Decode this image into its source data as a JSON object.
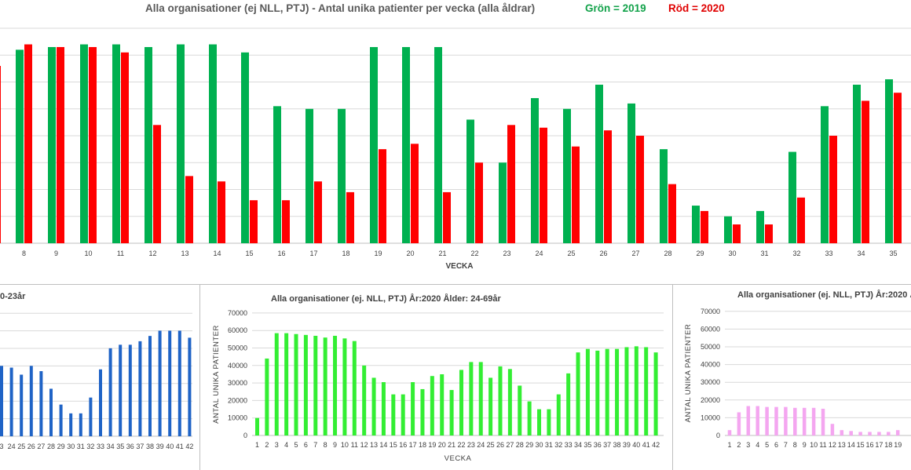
{
  "chart_data": [
    {
      "type": "bar",
      "id": "top",
      "title": "Alla organisationer (ej NLL,  PTJ)   -   Antal unika patienter per vecka (alla åldrar)",
      "legend_text": [
        {
          "text": "Grön = 2019",
          "color": "#12a24a"
        },
        {
          "text": "Röd = 2020",
          "color": "#e00000"
        }
      ],
      "xlabel": "VECKA",
      "categories": [
        "8",
        "9",
        "10",
        "11",
        "12",
        "13",
        "14",
        "15",
        "16",
        "17",
        "18",
        "19",
        "20",
        "21",
        "22",
        "23",
        "24",
        "25",
        "26",
        "27",
        "28",
        "29",
        "30",
        "31",
        "32",
        "33",
        "34",
        "35"
      ],
      "ylim": [
        0,
        80
      ],
      "grid": true,
      "series": [
        {
          "color": "#00b050",
          "values": [
            72,
            73,
            74,
            74,
            73,
            74,
            74,
            71,
            51,
            50,
            50,
            73,
            73,
            73,
            46,
            30,
            54,
            50,
            59,
            52,
            35,
            14,
            10,
            12,
            34,
            51,
            59,
            61
          ]
        },
        {
          "color": "#ff0000",
          "values": [
            74,
            73,
            73,
            71,
            44,
            25,
            23,
            16,
            16,
            23,
            19,
            35,
            37,
            19,
            30,
            44,
            43,
            36,
            42,
            40,
            22,
            12,
            7,
            7,
            17,
            40,
            53,
            56
          ]
        }
      ]
    },
    {
      "type": "bar",
      "id": "left",
      "title": "0-23år",
      "categories": [
        "3",
        "24",
        "25",
        "26",
        "27",
        "28",
        "29",
        "30",
        "31",
        "32",
        "33",
        "34",
        "35",
        "36",
        "37",
        "38",
        "39",
        "40",
        "41",
        "42"
      ],
      "ylim": [
        0,
        70
      ],
      "grid": true,
      "series": [
        {
          "color": "#1f63c6",
          "values": [
            40,
            39,
            35,
            40,
            37,
            27,
            18,
            13,
            13,
            22,
            38,
            50,
            52,
            52,
            54,
            57,
            60,
            60,
            60,
            56
          ]
        }
      ]
    },
    {
      "type": "bar",
      "id": "middle",
      "title": "Alla organisationer (ej. NLL, PTJ)  År:2020   Ålder: 24-69år",
      "xlabel": "VECKA",
      "ylabel": "ANTAL UNIKA PATIENTER",
      "categories": [
        "1",
        "2",
        "3",
        "4",
        "5",
        "6",
        "7",
        "8",
        "9",
        "10",
        "11",
        "12",
        "13",
        "14",
        "15",
        "16",
        "17",
        "18",
        "19",
        "20",
        "21",
        "22",
        "23",
        "24",
        "25",
        "26",
        "27",
        "28",
        "29",
        "30",
        "31",
        "32",
        "33",
        "34",
        "35",
        "36",
        "37",
        "38",
        "39",
        "40",
        "41",
        "42"
      ],
      "yticks": [
        "0",
        "10000",
        "20000",
        "30000",
        "40000",
        "50000",
        "60000",
        "70000"
      ],
      "ylim": [
        0,
        70000
      ],
      "grid": true,
      "series": [
        {
          "color": "#33ee33",
          "values": [
            10000,
            44000,
            58500,
            58500,
            58000,
            57500,
            57000,
            56000,
            57000,
            55500,
            54000,
            40000,
            33000,
            30500,
            23500,
            23500,
            30500,
            26500,
            34000,
            35000,
            26000,
            37500,
            42000,
            42000,
            33000,
            39500,
            38000,
            28500,
            19500,
            15000,
            15000,
            23500,
            35500,
            47500,
            49500,
            48500,
            49500,
            49500,
            50500,
            51000,
            50500,
            47500
          ]
        }
      ]
    },
    {
      "type": "bar",
      "id": "right",
      "title": "Alla organisationer (ej. NLL, PTJ)  År:2020  Å",
      "ylabel": "ANTAL UNIKA PATIENTER",
      "categories": [
        "1",
        "2",
        "3",
        "4",
        "5",
        "6",
        "7",
        "8",
        "9",
        "10",
        "11",
        "12",
        "13",
        "14",
        "15",
        "16",
        "17",
        "18",
        "19"
      ],
      "yticks": [
        "0",
        "10000",
        "20000",
        "30000",
        "40000",
        "50000",
        "60000",
        "70000"
      ],
      "ylim": [
        0,
        70000
      ],
      "grid": true,
      "series": [
        {
          "color": "#f4a6f0",
          "values": [
            3000,
            13000,
            16500,
            16500,
            16000,
            16000,
            16000,
            15500,
            15500,
            15500,
            15000,
            6500,
            3000,
            2500,
            2000,
            2000,
            2000,
            2000,
            3000
          ]
        }
      ]
    }
  ]
}
